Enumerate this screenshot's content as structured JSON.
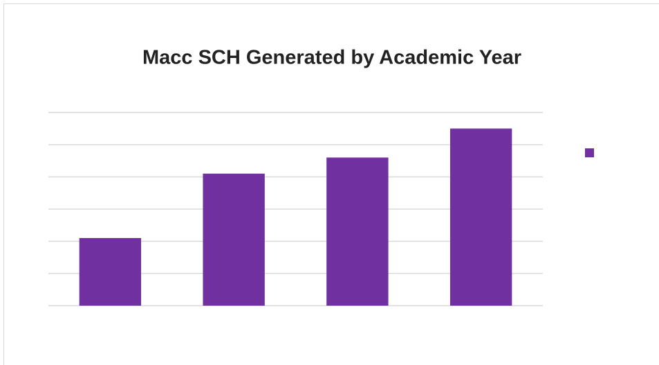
{
  "chart_data": {
    "type": "bar",
    "title": "Macc SCH Generated by Academic Year",
    "categories": [
      null,
      null,
      null,
      null
    ],
    "values": [
      2.1,
      4.1,
      4.6,
      5.5
    ],
    "color": "#7030a0",
    "ylim": [
      0,
      6
    ],
    "yticks": [
      0,
      1,
      2,
      3,
      4,
      5,
      6
    ],
    "grid": true,
    "legend": "right"
  }
}
